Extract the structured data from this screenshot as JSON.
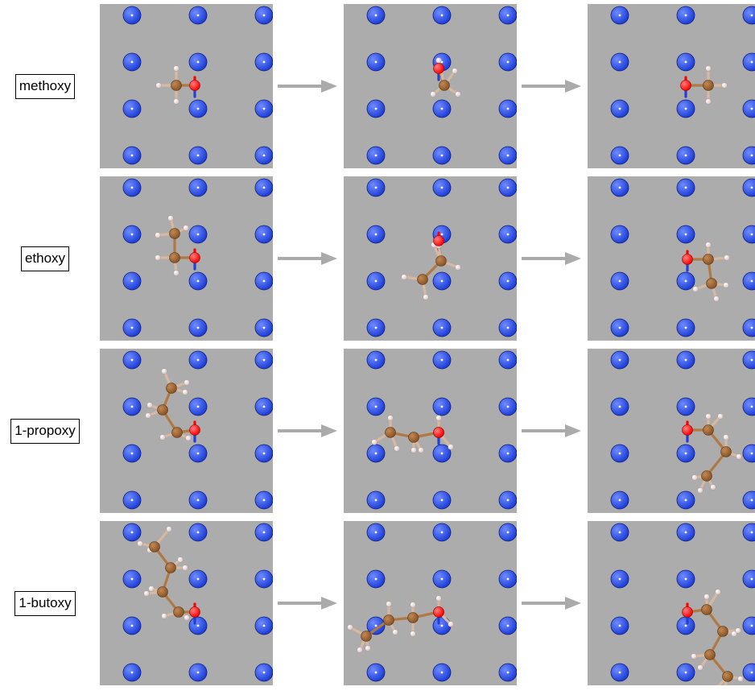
{
  "colors": {
    "background": "#ffffff",
    "panel": "#acacac",
    "surface_atom": "#1f3fd6",
    "oxygen": "#ff0000",
    "carbon": "#8a5426",
    "hydrogen": "#f7e2e2",
    "bond": "#b07842",
    "arrow": "#aaaaaa"
  },
  "rows": [
    {
      "label": "methoxy"
    },
    {
      "label": "ethoxy"
    },
    {
      "label": "1-propoxy"
    },
    {
      "label": "1-butoxy"
    }
  ]
}
